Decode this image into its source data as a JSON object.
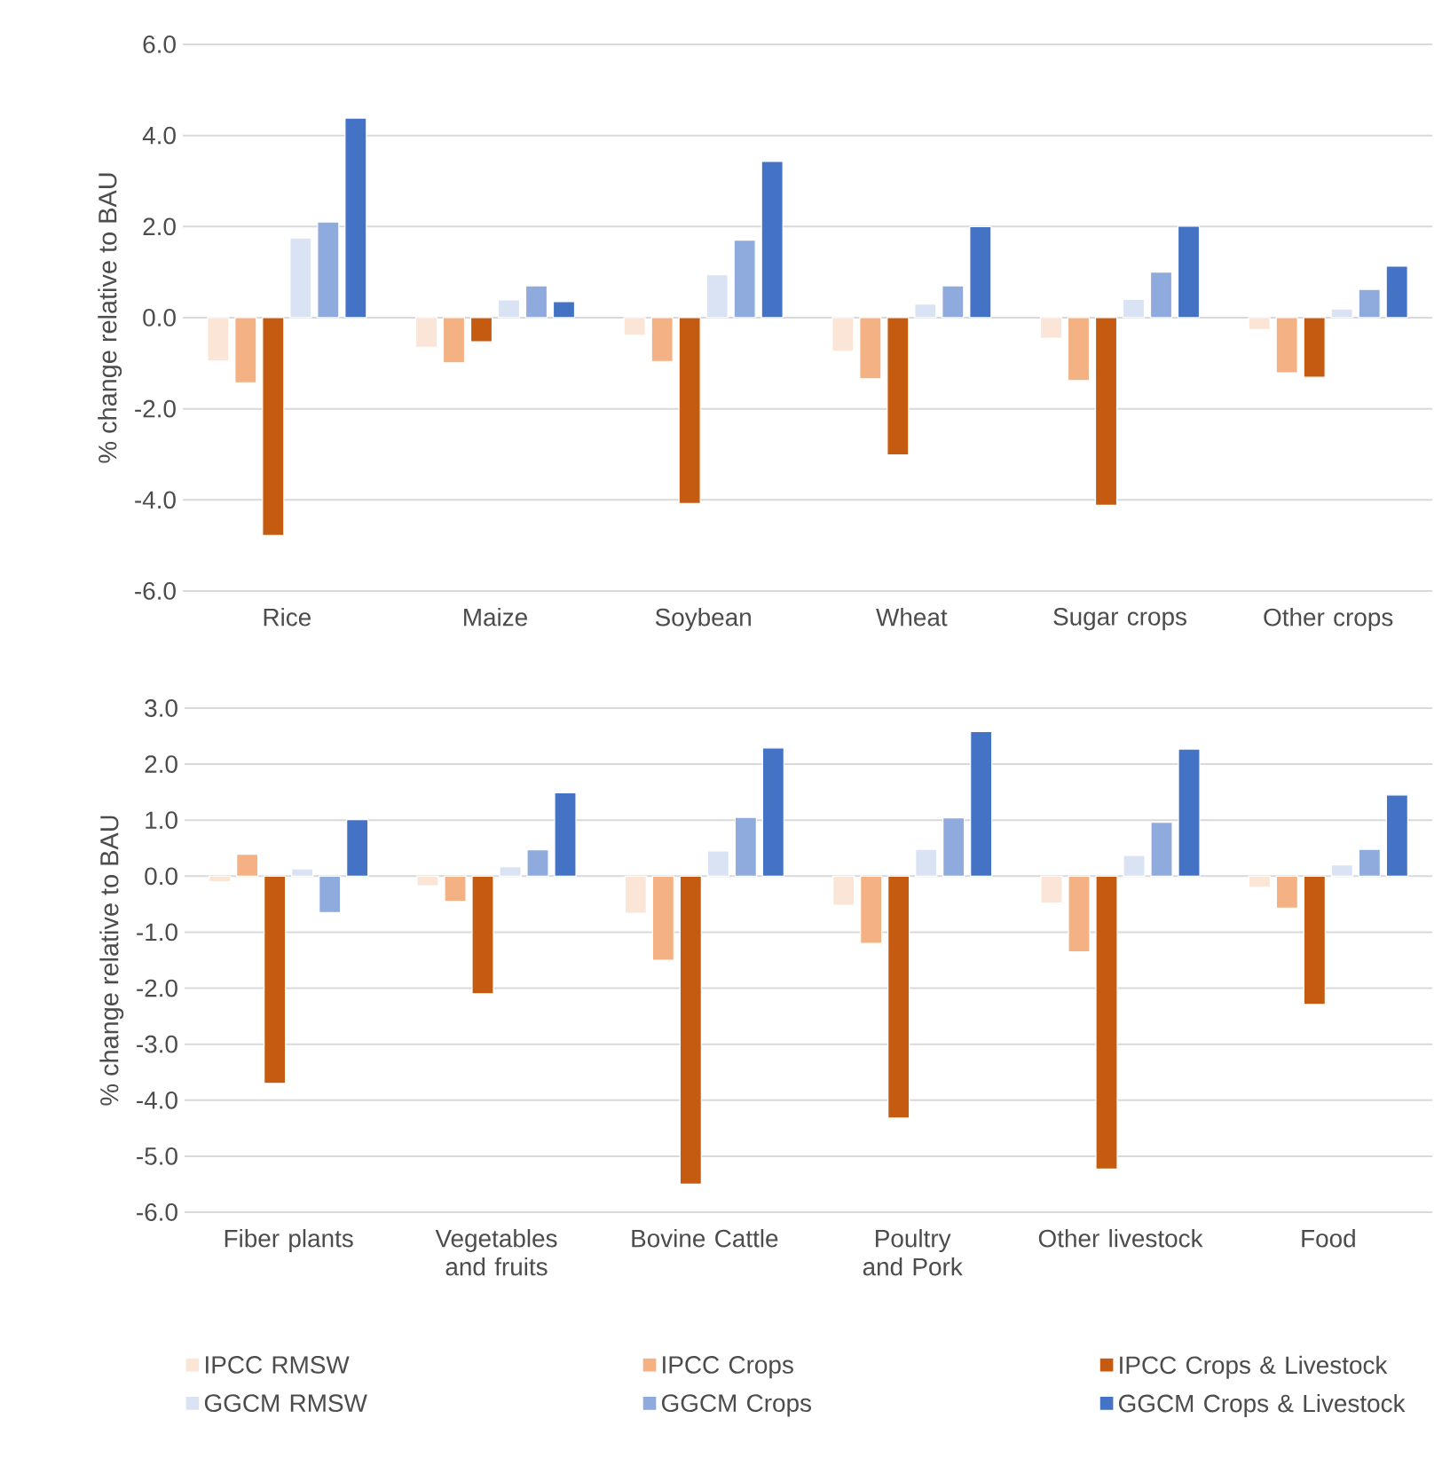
{
  "chart_data": [
    {
      "type": "bar",
      "ylabel": "% change relative to BAU",
      "categories": [
        "Rice",
        "Maize",
        "Soybean",
        "Wheat",
        "Sugar crops",
        "Other crops"
      ],
      "series": [
        {
          "color": "#fbe5d6",
          "values": [
            -0.95,
            -0.65,
            -0.38,
            -0.74,
            -0.45,
            -0.26
          ]
        },
        {
          "color": "#f4b183",
          "values": [
            -1.43,
            -0.99,
            -0.96,
            -1.34,
            -1.38,
            -1.21
          ]
        },
        {
          "color": "#c55a11",
          "values": [
            -4.78,
            -0.53,
            -4.08,
            -3.01,
            -4.12,
            -1.31
          ]
        },
        {
          "color": "#dae3f3",
          "values": [
            1.75,
            0.39,
            0.94,
            0.3,
            0.4,
            0.19
          ]
        },
        {
          "color": "#8faadc",
          "values": [
            2.1,
            0.7,
            1.7,
            0.7,
            1.0,
            0.62
          ]
        },
        {
          "color": "#4472c4",
          "values": [
            4.38,
            0.35,
            3.43,
            2.0,
            2.01,
            1.13
          ]
        }
      ],
      "ylim": [
        -6,
        6
      ],
      "yticks": [
        {
          "value": -6,
          "label": "-6.0"
        },
        {
          "value": -4,
          "label": "-4.0"
        },
        {
          "value": -2,
          "label": "-2.0"
        },
        {
          "value": 0,
          "label": "0.0"
        },
        {
          "value": 2,
          "label": "2.0"
        },
        {
          "value": 4,
          "label": "4.0"
        },
        {
          "value": 6,
          "label": "6.0"
        }
      ],
      "grid": "y"
    },
    {
      "type": "bar",
      "ylabel": "% change relative to BAU",
      "categories": [
        "Fiber plants",
        "Vegetables and fruits",
        "Bovine Cattle",
        "Poultry and Pork",
        "Other livestock",
        "Food"
      ],
      "series": [
        {
          "name": "IPCC  RMSW",
          "color": "#fbe5d6",
          "values": [
            -0.1,
            -0.17,
            -0.66,
            -0.52,
            -0.48,
            -0.2
          ]
        },
        {
          "name": "IPCC  Crops",
          "color": "#f4b183",
          "values": [
            0.39,
            -0.45,
            -1.5,
            -1.2,
            -1.35,
            -0.57
          ]
        },
        {
          "name": "IPCC  Crops & Livestock",
          "color": "#c55a11",
          "values": [
            -3.7,
            -2.1,
            -5.5,
            -4.32,
            -5.23,
            -2.29
          ]
        },
        {
          "name": "GGCM RMSW",
          "color": "#dae3f3",
          "values": [
            0.13,
            0.17,
            0.45,
            0.48,
            0.37,
            0.2
          ]
        },
        {
          "name": "GGCM Crops",
          "color": "#8faadc",
          "values": [
            -0.65,
            0.47,
            1.05,
            1.04,
            0.96,
            0.48
          ]
        },
        {
          "name": "GGCM Crops & Livestock",
          "color": "#4472c4",
          "values": [
            1.01,
            1.49,
            2.29,
            2.58,
            2.27,
            1.45
          ]
        }
      ],
      "ylim": [
        -6,
        3
      ],
      "yticks": [
        {
          "value": -6,
          "label": "-6.0"
        },
        {
          "value": -5,
          "label": "-5.0"
        },
        {
          "value": -4,
          "label": "-4.0"
        },
        {
          "value": -3,
          "label": "-3.0"
        },
        {
          "value": -2,
          "label": "-2.0"
        },
        {
          "value": -1,
          "label": "-1.0"
        },
        {
          "value": 0,
          "label": "0.0"
        },
        {
          "value": 1,
          "label": "1.0"
        },
        {
          "value": 2,
          "label": "2.0"
        },
        {
          "value": 3,
          "label": "3.0"
        }
      ],
      "grid": "y",
      "legend": "bottom"
    }
  ]
}
